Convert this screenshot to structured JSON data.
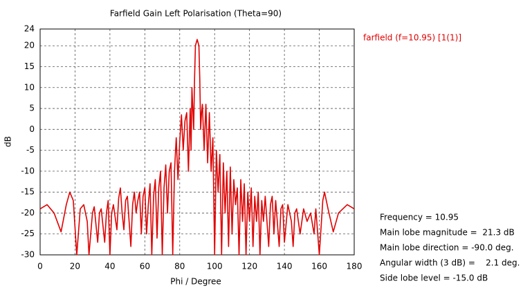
{
  "chart_data": {
    "type": "line",
    "title": "Farfield Gain Left Polarisation (Theta=90)",
    "x_label": "Phi / Degree",
    "y_label": "dB",
    "xlim": [
      0,
      180
    ],
    "ylim": [
      -30,
      24
    ],
    "xticks": [
      0,
      20,
      40,
      60,
      80,
      100,
      120,
      140,
      160,
      180
    ],
    "yticks": [
      -30,
      -25,
      -20,
      -15,
      -10,
      -5,
      0,
      5,
      10,
      15,
      20,
      24
    ],
    "grid": true,
    "legend": "top-right",
    "series": [
      {
        "name": "farfield (f=10.95) [1(1)]",
        "color": "#e00000",
        "x": [
          0,
          4,
          8,
          12,
          15,
          17,
          19,
          21,
          23,
          25,
          27,
          28,
          30,
          31,
          33,
          34,
          35,
          37,
          38,
          39,
          40,
          41,
          42,
          44,
          45,
          46,
          47,
          48,
          49,
          50,
          52,
          53,
          54,
          55,
          56,
          57,
          58,
          59,
          60,
          61,
          62,
          63,
          64,
          65,
          66,
          67,
          68,
          69,
          70,
          71,
          72,
          73,
          74,
          75,
          76,
          77,
          78,
          79,
          80,
          81,
          82,
          83,
          84,
          85,
          86,
          86.5,
          87,
          88,
          88.5,
          89,
          90,
          91,
          91.5,
          92,
          92.5,
          93,
          94,
          95,
          96,
          97,
          98,
          99,
          100,
          101,
          102,
          103,
          104,
          105,
          106,
          107,
          108,
          109,
          110,
          111,
          112,
          113,
          114,
          115,
          116,
          117,
          118,
          119,
          120,
          121,
          122,
          123,
          124,
          125,
          126,
          127,
          128,
          129,
          131,
          132,
          133,
          134,
          135,
          137,
          138,
          139,
          140,
          142,
          144,
          145,
          146,
          147,
          149,
          151,
          153,
          155,
          157,
          158,
          160,
          162,
          163,
          165,
          168,
          171,
          176,
          180
        ],
        "values": [
          -19,
          -18,
          -20,
          -24.5,
          -18,
          -15,
          -17,
          -30,
          -19,
          -18,
          -22,
          -30,
          -20,
          -18.5,
          -27,
          -20,
          -19,
          -27,
          -20,
          -17,
          -30,
          -20,
          -18,
          -24,
          -16.5,
          -14,
          -20,
          -24,
          -17,
          -16,
          -28,
          -18,
          -15,
          -20,
          -17,
          -15,
          -25,
          -16,
          -14,
          -25,
          -18,
          -13,
          -30,
          -16,
          -12,
          -26,
          -14,
          -10,
          -30,
          -14,
          -8.5,
          -20,
          -10,
          -8,
          -30,
          -10,
          -2,
          -12,
          -3,
          3.5,
          -5,
          2,
          4,
          -10,
          5,
          -5,
          10,
          0,
          12,
          20,
          21.5,
          20,
          12,
          0,
          4,
          6,
          -5,
          6,
          -8,
          4,
          -10,
          -2,
          -30,
          -5,
          -15,
          -6,
          -30,
          -8,
          -20,
          -10,
          -28,
          -9,
          -25,
          -12,
          -18,
          -14,
          -30,
          -12,
          -22,
          -13,
          -30,
          -15,
          -22,
          -14,
          -28,
          -16,
          -22,
          -15,
          -30,
          -17,
          -22,
          -16,
          -28,
          -18,
          -16,
          -25,
          -17,
          -28,
          -19,
          -18,
          -27,
          -18,
          -22,
          -28,
          -20,
          -19,
          -25,
          -19,
          -22,
          -20,
          -25,
          -19,
          -30,
          -17,
          -15,
          -19,
          -24.5,
          -20,
          -18,
          -19
        ]
      }
    ],
    "annotations": [
      "Frequency = 10.95",
      "Main lobe magnitude =  21.3 dB",
      "Main lobe direction = -90.0 deg.",
      "Angular width (3 dB) =    2.1 deg.",
      "Side lobe level = -15.0 dB"
    ]
  }
}
